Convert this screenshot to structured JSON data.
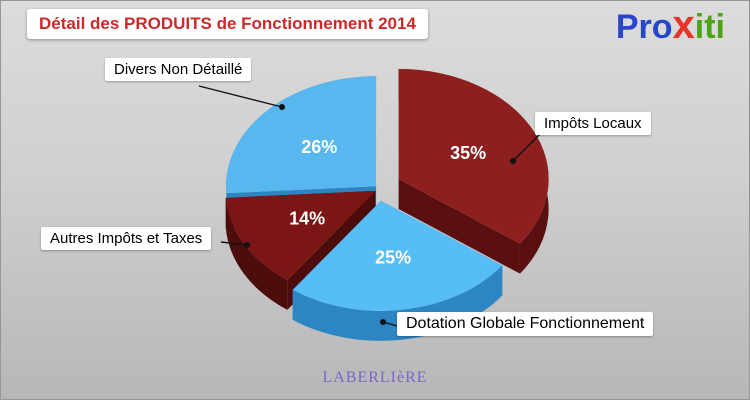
{
  "header": {
    "title": "Détail des PRODUITS de Fonctionnement 2014"
  },
  "logo": {
    "pro": "Pro",
    "x": "x",
    "iti": "iti",
    "colors": {
      "pro": "#2746c8",
      "x": "#e5342a",
      "iti": "#4da313"
    }
  },
  "footer": {
    "text": "LABERLIèRE"
  },
  "colors": {
    "background_top": "#dcdcdc",
    "background_bottom": "#b7b7b7",
    "title_text": "#cc2a2a",
    "callout_background": "#ffffff",
    "callout_text": "#000000",
    "percent_text": "#ffffff",
    "footer_text": "#7d64c6"
  },
  "chart_data": {
    "type": "pie",
    "title": "Détail des PRODUITS de Fonctionnement 2014",
    "unit": "%",
    "style": "3d-exploded",
    "start_angle_deg": 0,
    "direction": "clockwise",
    "legend_position": "outside-callouts",
    "slices": [
      {
        "label": "Impôts Locaux",
        "value": 35,
        "color": "#8e1f1f",
        "side_color": "#5a1010",
        "explode": 22
      },
      {
        "label": "Dotation Globale Fonctionnement",
        "value": 25,
        "color": "#57bdf6",
        "side_color": "#2d85c4",
        "explode": 12
      },
      {
        "label": "Autres Impôts et Taxes",
        "value": 14,
        "color": "#7c1515",
        "side_color": "#4e0d0d",
        "explode": 4
      },
      {
        "label": "Divers Non Détaillé",
        "value": 26,
        "color": "#58b7ef",
        "side_color": "#2d85c4",
        "explode": 4
      }
    ]
  }
}
